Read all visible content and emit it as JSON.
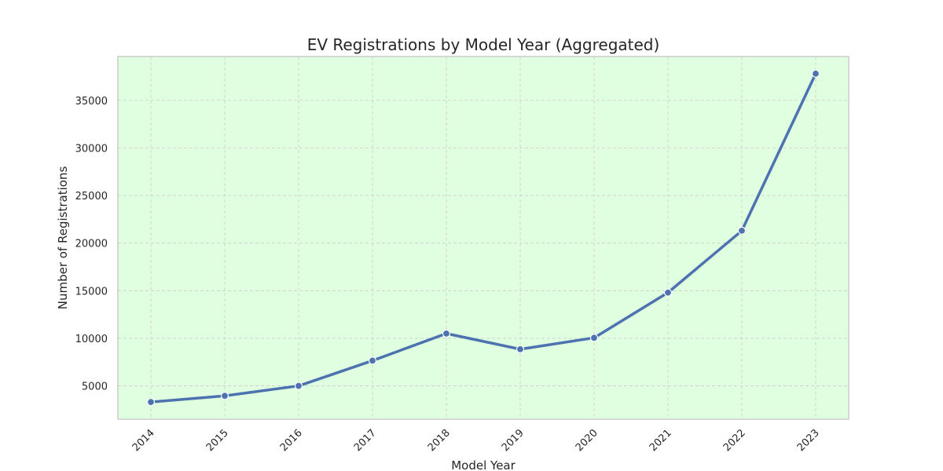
{
  "chart_data": {
    "type": "line",
    "title": "EV Registrations by Model Year (Aggregated)",
    "xlabel": "Model Year",
    "ylabel": "Number of Registrations",
    "x": [
      "2014",
      "2015",
      "2016",
      "2017",
      "2018",
      "2019",
      "2020",
      "2021",
      "2022",
      "2023"
    ],
    "series": [
      {
        "values": [
          3300,
          3950,
          5000,
          7650,
          10500,
          8850,
          10050,
          14800,
          21300,
          37800
        ]
      }
    ],
    "yticks": [
      5000,
      10000,
      15000,
      20000,
      25000,
      30000,
      35000
    ],
    "ylim": [
      1500,
      39600
    ],
    "grid": true,
    "legend": "none",
    "markers": true,
    "x_tick_rotation": 45,
    "colors": {
      "line": "#4c72b0",
      "plot_background": "#e0ffe0",
      "grid": "#cccccc",
      "frame": "#cccccc"
    }
  }
}
